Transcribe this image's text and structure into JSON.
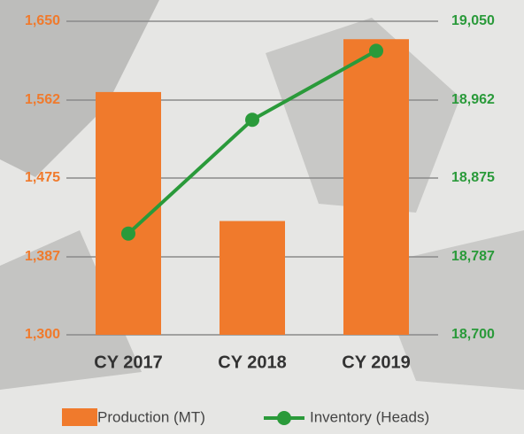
{
  "chart_data": {
    "type": "bar-line",
    "categories": [
      "CY 2017",
      "CY 2018",
      "CY 2019"
    ],
    "series": [
      {
        "name": "Production (MT)",
        "color": "#f07a2c",
        "type": "bar",
        "values": [
          1571,
          1427,
          1630
        ]
      },
      {
        "name": "Inventory (Heads)",
        "color": "#2a9a3a",
        "type": "line",
        "axis": "y2",
        "values": [
          18813,
          18940,
          19017
        ]
      }
    ],
    "ylim": [
      1300,
      1650
    ],
    "yticks": [
      {
        "value": 1300,
        "label": "1,300"
      },
      {
        "value": 1387,
        "label": "1,387"
      },
      {
        "value": 1475,
        "label": "1,475"
      },
      {
        "value": 1562,
        "label": "1,562"
      },
      {
        "value": 1650,
        "label": "1,650"
      }
    ],
    "y2lim": [
      18700,
      19050
    ],
    "y2ticks": [
      {
        "value": 18700,
        "label": "18,700"
      },
      {
        "value": 18787,
        "label": "18,787"
      },
      {
        "value": 18875,
        "label": "18,875"
      },
      {
        "value": 18962,
        "label": "18,962"
      },
      {
        "value": 19050,
        "label": "19,050"
      }
    ],
    "grid": true
  }
}
